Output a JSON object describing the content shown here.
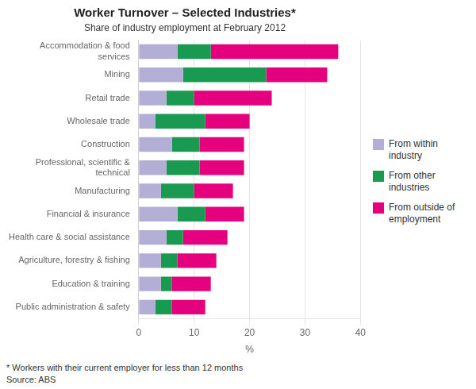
{
  "chart_data": {
    "type": "bar",
    "orientation": "horizontal",
    "stacked": true,
    "title": "Worker Turnover – Selected Industries*",
    "subtitle": "Share of industry employment at February 2012",
    "categories": [
      "Accommodation & food\nservices",
      "Mining",
      "Retail trade",
      "Wholesale trade",
      "Construction",
      "Professional, scientific &\ntechnical",
      "Manufacturing",
      "Financial & insurance",
      "Health care & social assistance",
      "Agriculture, forestry & fishing",
      "Education & training",
      "Public administration & safety"
    ],
    "series": [
      {
        "name": "From within industry",
        "color": "#b3aed6",
        "values": [
          7,
          8,
          5,
          3,
          6,
          5,
          4,
          7,
          5,
          4,
          4,
          3
        ]
      },
      {
        "name": "From other industries",
        "color": "#1a9950",
        "values": [
          6,
          15,
          5,
          9,
          5,
          6,
          6,
          5,
          3,
          3,
          2,
          3
        ]
      },
      {
        "name": "From outside of\nemployment",
        "color": "#e5007d",
        "values": [
          23,
          11,
          14,
          8,
          8,
          8,
          7,
          7,
          8,
          7,
          7,
          6
        ]
      }
    ],
    "xlabel": "%",
    "xlim": [
      0,
      40
    ],
    "xticks": [
      0,
      10,
      20,
      30,
      40
    ],
    "grid": true,
    "legend": "right",
    "annotations": [
      "*   Workers with their current employer for less than 12 months",
      "Source: ABS"
    ]
  }
}
